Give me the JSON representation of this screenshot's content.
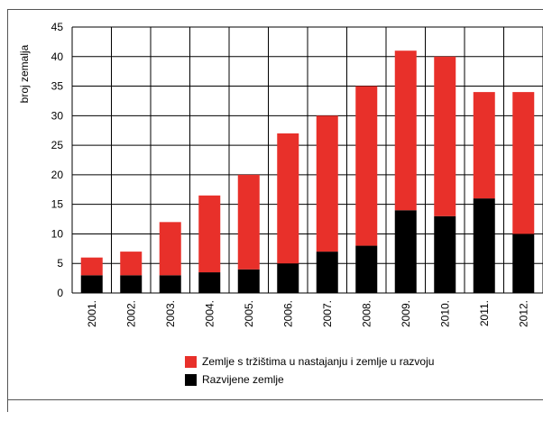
{
  "chart_data": {
    "type": "bar",
    "stacked": true,
    "ylabel": "broj zemalja",
    "ylim": [
      0,
      45
    ],
    "yticks": [
      0,
      5,
      10,
      15,
      20,
      25,
      30,
      35,
      40,
      45
    ],
    "grid": true,
    "legend_position": "bottom",
    "categories": [
      "2001.",
      "2002.",
      "2003.",
      "2004.",
      "2005.",
      "2006.",
      "2007.",
      "2008.",
      "2009.",
      "2010.",
      "2011.",
      "2012."
    ],
    "series": [
      {
        "name": "Razvijene zemlje",
        "color": "#000000",
        "values": [
          3,
          3,
          3,
          3.5,
          4,
          5,
          7,
          8,
          14,
          13,
          16,
          10
        ]
      },
      {
        "name": "Zemlje s tržištima u nastajanju i zemlje u razvoju",
        "color": "#e8302a",
        "values": [
          3,
          4,
          9,
          13,
          16,
          22,
          23,
          27,
          27,
          27,
          18,
          24
        ]
      }
    ],
    "legend_order": [
      1,
      0
    ]
  }
}
